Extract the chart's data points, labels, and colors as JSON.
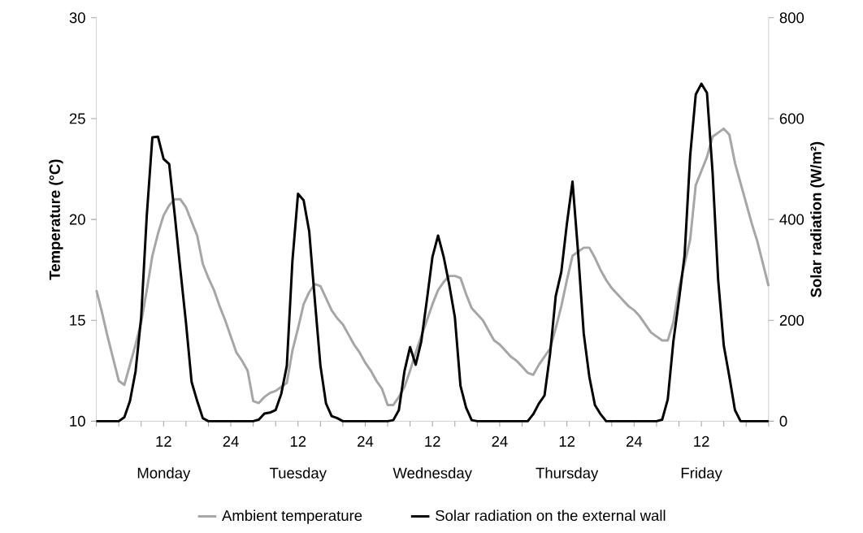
{
  "chart_data": {
    "type": "line",
    "ylabel": "Temperature (°C)",
    "y2label": "Solar radiation (W/m²)",
    "categories": [
      null,
      null,
      null,
      null,
      null,
      null,
      null,
      null,
      null,
      null,
      null,
      null,
      "12",
      null,
      null,
      null,
      null,
      null,
      null,
      null,
      null,
      null,
      null,
      null,
      "24",
      null,
      null,
      null,
      null,
      null,
      null,
      null,
      null,
      null,
      null,
      null,
      "12",
      null,
      null,
      null,
      null,
      null,
      null,
      null,
      null,
      null,
      null,
      null,
      "24",
      null,
      null,
      null,
      null,
      null,
      null,
      null,
      null,
      null,
      null,
      null,
      "12",
      null,
      null,
      null,
      null,
      null,
      null,
      null,
      null,
      null,
      null,
      null,
      "24",
      null,
      null,
      null,
      null,
      null,
      null,
      null,
      null,
      null,
      null,
      null,
      "12",
      null,
      null,
      null,
      null,
      null,
      null,
      null,
      null,
      null,
      null,
      null,
      "24",
      null,
      null,
      null,
      null,
      null,
      null,
      null,
      null,
      null,
      null,
      null,
      "12",
      null,
      null,
      null,
      null,
      null,
      null,
      null,
      null,
      null,
      null,
      null,
      null
    ],
    "ylim": [
      10,
      30
    ],
    "yticks": [
      10,
      15,
      20,
      25,
      30
    ],
    "y2lim": [
      0,
      800
    ],
    "y2ticks": [
      0,
      200,
      400,
      600,
      800
    ],
    "legend": "bottom",
    "annotations": [
      "Monday",
      "Tuesday",
      "Wednesday",
      "Thursday",
      "Friday"
    ],
    "series": [
      {
        "name": "Ambient temperature",
        "color": "#a6a6a6",
        "values": [
          16.5,
          15.4,
          14.2,
          13.1,
          12.0,
          11.8,
          12.8,
          13.8,
          14.9,
          16.5,
          18.2,
          19.3,
          20.2,
          20.7,
          21.0,
          21.0,
          20.6,
          19.9,
          19.2,
          17.8,
          17.1,
          16.5,
          15.7,
          15.0,
          14.2,
          13.4,
          13.0,
          12.5,
          11.0,
          10.9,
          11.2,
          11.4,
          11.5,
          11.7,
          11.9,
          13.5,
          14.6,
          15.8,
          16.4,
          16.8,
          16.7,
          16.1,
          15.5,
          15.1,
          14.8,
          14.3,
          13.8,
          13.4,
          12.9,
          12.5,
          12.0,
          11.6,
          10.8,
          10.8,
          11.2,
          11.7,
          12.5,
          13.4,
          14.2,
          15.0,
          15.8,
          16.5,
          16.9,
          17.2,
          17.2,
          17.1,
          16.3,
          15.6,
          15.3,
          15.0,
          14.5,
          14.0,
          13.8,
          13.5,
          13.2,
          13.0,
          12.7,
          12.4,
          12.3,
          12.8,
          13.2,
          13.6,
          14.6,
          15.7,
          17.0,
          18.2,
          18.4,
          18.6,
          18.6,
          18.1,
          17.5,
          17.0,
          16.6,
          16.3,
          16.0,
          15.7,
          15.5,
          15.2,
          14.8,
          14.4,
          14.2,
          14.0,
          14.0,
          14.9,
          16.6,
          17.8,
          19.0,
          21.7,
          22.4,
          23.1,
          24.1,
          24.3,
          24.5,
          24.2,
          22.8,
          21.8,
          20.8,
          19.8,
          18.9,
          17.8,
          16.7
        ]
      },
      {
        "name": "Solar radiation on the external wall",
        "color": "#000000",
        "axis": "y2",
        "values": [
          0,
          0,
          0,
          0,
          0,
          8,
          40,
          99,
          206,
          408,
          563,
          564,
          520,
          510,
          408,
          300,
          195,
          78,
          40,
          6,
          0,
          0,
          0,
          0,
          0,
          0,
          0,
          0,
          0,
          3,
          15,
          17,
          22,
          54,
          110,
          318,
          451,
          438,
          376,
          240,
          110,
          35,
          10,
          6,
          0,
          0,
          0,
          0,
          0,
          0,
          0,
          0,
          0,
          2,
          22,
          99,
          147,
          112,
          158,
          240,
          326,
          368,
          326,
          270,
          206,
          70,
          27,
          2,
          0,
          0,
          0,
          0,
          0,
          0,
          0,
          0,
          0,
          0,
          14,
          35,
          51,
          134,
          248,
          296,
          392,
          475,
          334,
          174,
          88,
          32,
          14,
          0,
          0,
          0,
          0,
          0,
          0,
          0,
          0,
          0,
          0,
          3,
          43,
          158,
          240,
          328,
          526,
          648,
          669,
          651,
          494,
          280,
          150,
          88,
          22,
          0,
          0,
          0,
          0,
          0,
          0
        ]
      }
    ]
  }
}
